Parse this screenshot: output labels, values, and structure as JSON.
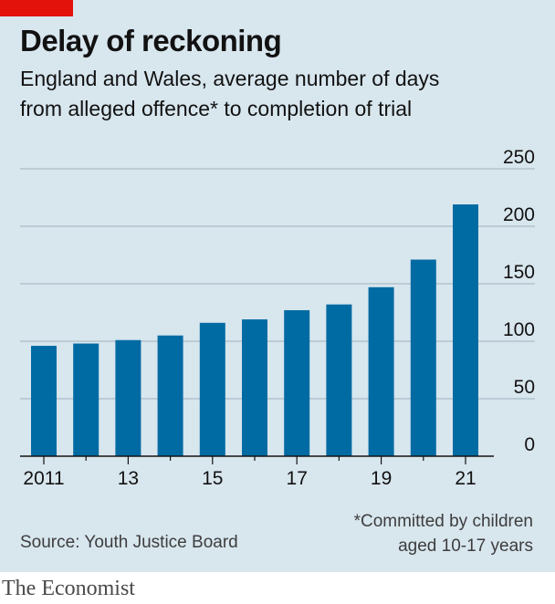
{
  "header": {
    "title": "Delay of reckoning",
    "subtitle_line1": "England and Wales, average number of days",
    "subtitle_line2": "from alleged offence* to completion of trial"
  },
  "footer": {
    "source": "Source: Youth Justice Board",
    "note_line1": "*Committed by children",
    "note_line2": "aged 10-17 years",
    "brand": "The Economist"
  },
  "colors": {
    "bar": "#006ba2",
    "background": "#d8e6ee",
    "grid": "#a9bcc7",
    "accent": "#e3120b"
  },
  "chart_data": {
    "type": "bar",
    "title": "Delay of reckoning",
    "subtitle": "England and Wales, average number of days from alleged offence* to completion of trial",
    "xlabel": "",
    "ylabel": "",
    "categories": [
      "2011",
      "2012",
      "2013",
      "2014",
      "2015",
      "2016",
      "2017",
      "2018",
      "2019",
      "2020",
      "2021"
    ],
    "x_tick_labels": [
      "2011",
      "",
      "13",
      "",
      "15",
      "",
      "17",
      "",
      "19",
      "",
      "21"
    ],
    "values": [
      96,
      98,
      101,
      105,
      116,
      119,
      127,
      132,
      147,
      171,
      219
    ],
    "ylim": [
      0,
      250
    ],
    "yticks": [
      0,
      50,
      100,
      150,
      200,
      250
    ],
    "y_axis_position": "right",
    "grid": true
  }
}
